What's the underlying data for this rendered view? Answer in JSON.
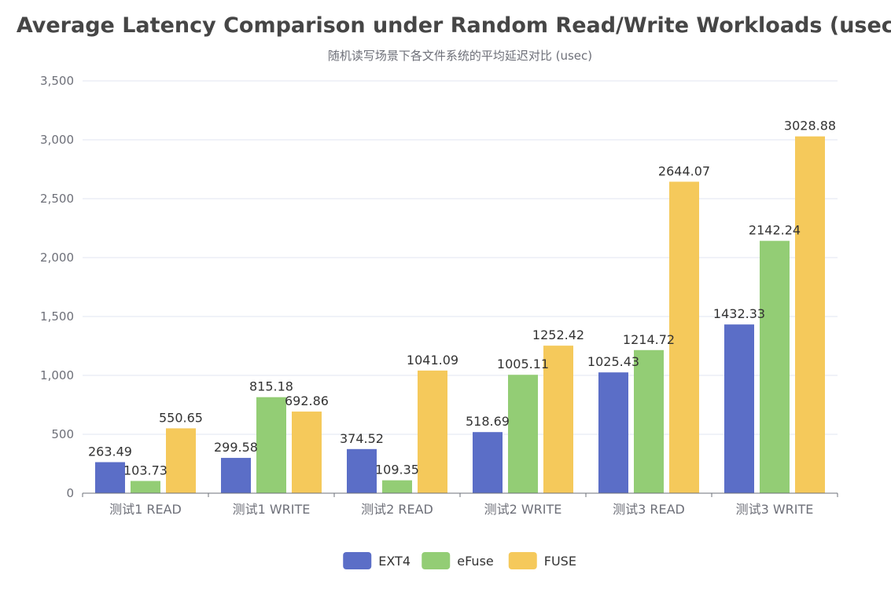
{
  "chart_data": {
    "type": "bar",
    "title": "Average Latency Comparison under Random Read/Write Workloads (usec)",
    "subtitle": "随机读写场景下各文件系统的平均延迟对比 (usec)",
    "xlabel": "",
    "ylabel": "",
    "categories": [
      "测试1 READ",
      "测试1 WRITE",
      "测试2 READ",
      "测试2 WRITE",
      "测试3 READ",
      "测试3 WRITE"
    ],
    "series": [
      {
        "name": "EXT4",
        "color": "#5b6ec7",
        "values": [
          263.49,
          299.58,
          374.52,
          518.69,
          1025.43,
          1432.33
        ]
      },
      {
        "name": "eFuse",
        "color": "#93cd75",
        "values": [
          103.73,
          815.18,
          109.35,
          1005.11,
          1214.72,
          2142.24
        ]
      },
      {
        "name": "FUSE",
        "color": "#f5c95b",
        "values": [
          550.65,
          692.86,
          1041.09,
          1252.42,
          2644.07,
          3028.88
        ]
      }
    ],
    "ylim": [
      0,
      3500
    ],
    "yticks": [
      "0",
      "500",
      "1,000",
      "1,500",
      "2,000",
      "2,500",
      "3,000",
      "3,500"
    ],
    "ytick_values": [
      0,
      500,
      1000,
      1500,
      2000,
      2500,
      3000,
      3500
    ],
    "grid": true,
    "legend_position": "bottom-center"
  }
}
